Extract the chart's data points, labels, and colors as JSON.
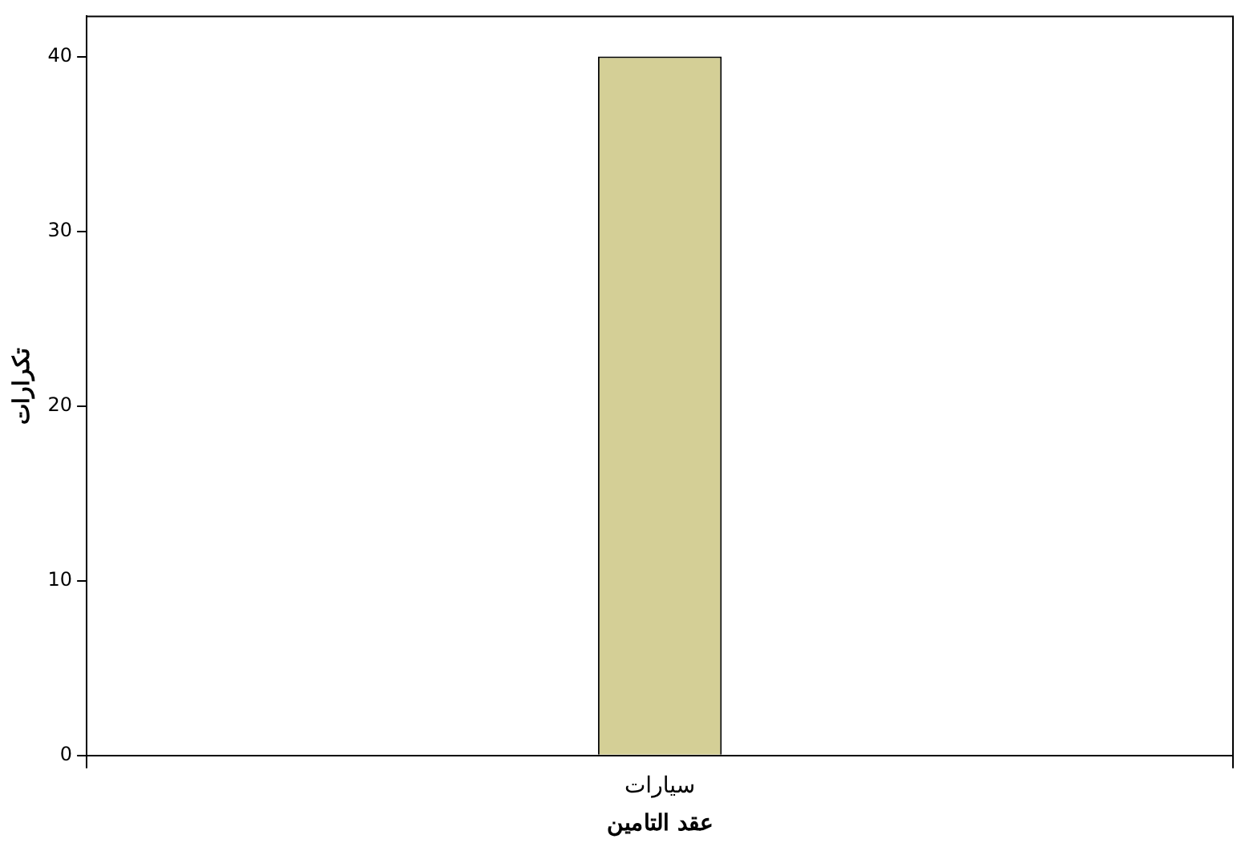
{
  "chart_data": {
    "type": "bar",
    "xlabel": "عقد التامين",
    "ylabel": "تكرارات",
    "categories": [
      "سيارات"
    ],
    "values": [
      40
    ],
    "color": "#d4cf96",
    "ylim": [
      0,
      42.3
    ],
    "yticks": [
      0,
      10,
      20,
      30,
      40
    ],
    "grid": false,
    "legend": false
  }
}
